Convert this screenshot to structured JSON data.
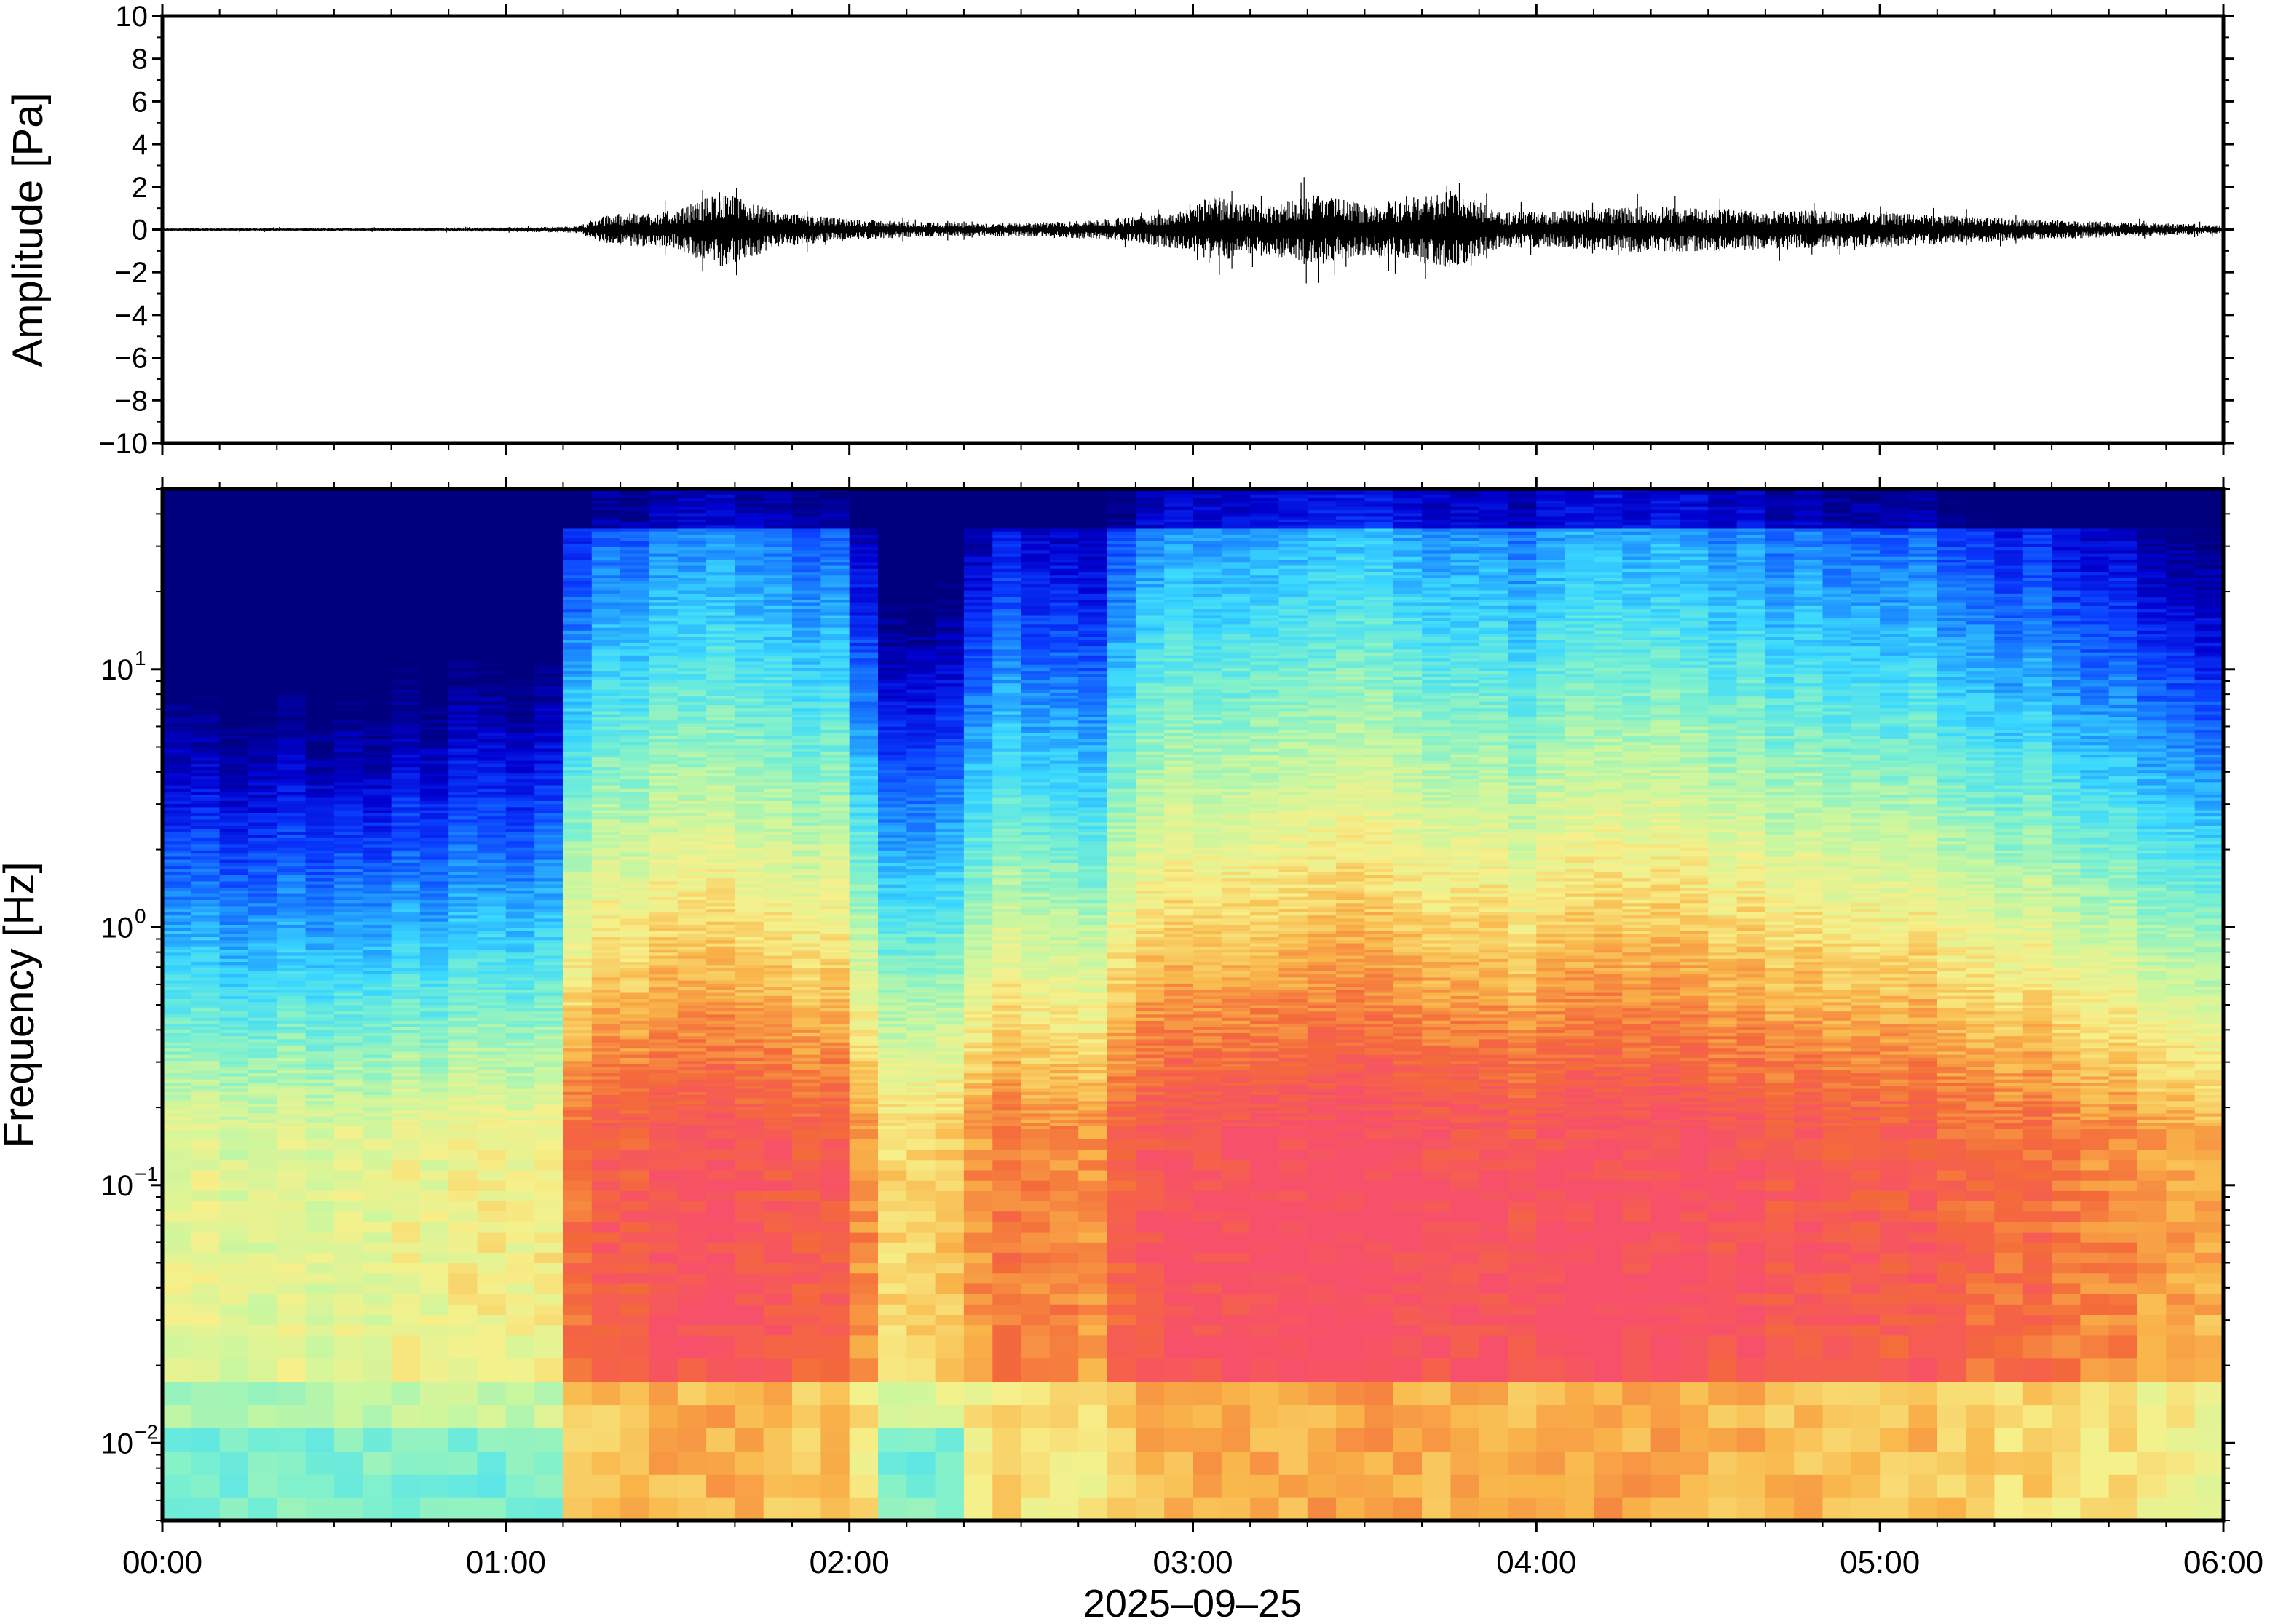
{
  "chart_data": [
    {
      "type": "line",
      "panel": "waveform",
      "ylabel": "Amplitude [Pa]",
      "ylim": [
        -10,
        10
      ],
      "yticks": [
        "10",
        "8",
        "6",
        "4",
        "2",
        "0",
        "−2",
        "−4",
        "−6",
        "−8",
        "−10"
      ],
      "xlim": [
        "00:00",
        "06:00"
      ],
      "series_color": "#000000",
      "envelope": {
        "description_free": true,
        "time_hours": [
          0.0,
          0.5,
          1.0,
          1.2,
          1.3,
          1.5,
          1.62,
          1.8,
          2.0,
          2.2,
          2.4,
          2.6,
          2.8,
          3.0,
          3.05,
          3.2,
          3.35,
          3.5,
          3.6,
          3.75,
          3.9,
          4.1,
          4.3,
          4.5,
          4.8,
          5.1,
          5.4,
          5.7,
          6.0
        ],
        "amplitude_pa": [
          0.08,
          0.08,
          0.1,
          0.15,
          0.7,
          0.9,
          1.8,
          0.8,
          0.5,
          0.35,
          0.3,
          0.35,
          0.55,
          1.0,
          1.6,
          1.1,
          1.7,
          1.2,
          1.3,
          1.9,
          0.8,
          0.9,
          1.1,
          1.0,
          0.9,
          0.75,
          0.5,
          0.35,
          0.2
        ]
      }
    },
    {
      "type": "heatmap",
      "panel": "spectrogram",
      "ylabel": "Frequency [Hz]",
      "xlabel": "2025–09–25",
      "yscale": "log",
      "ylim_hz": [
        0.005,
        50
      ],
      "yticks": [
        {
          "value": 10,
          "base": "10",
          "exp": "1"
        },
        {
          "value": 1,
          "base": "10",
          "exp": "0"
        },
        {
          "value": 0.1,
          "base": "10",
          "exp": "−1"
        },
        {
          "value": 0.01,
          "base": "10",
          "exp": "−2"
        }
      ],
      "xticks": [
        "00:00",
        "01:00",
        "02:00",
        "03:00",
        "04:00",
        "05:00",
        "06:00"
      ],
      "colormap": [
        "#00007f",
        "#0000d0",
        "#0a3cff",
        "#1c8cff",
        "#3ad8ff",
        "#7af0d0",
        "#c8f7a0",
        "#f7f08a",
        "#f9b64a",
        "#f46a3a",
        "#f7506a"
      ],
      "column_activity": {
        "time_hours": [
          0.0,
          0.6,
          1.15,
          1.22,
          1.5,
          1.7,
          2.0,
          2.1,
          2.3,
          2.45,
          2.7,
          2.8,
          3.0,
          3.3,
          3.6,
          3.8,
          4.2,
          4.5,
          5.0,
          5.3,
          5.6,
          6.0
        ],
        "level": [
          0.05,
          0.1,
          0.15,
          0.62,
          0.7,
          0.7,
          0.62,
          0.3,
          0.28,
          0.55,
          0.45,
          0.64,
          0.72,
          0.78,
          0.76,
          0.68,
          0.74,
          0.72,
          0.68,
          0.62,
          0.48,
          0.38
        ]
      }
    }
  ]
}
